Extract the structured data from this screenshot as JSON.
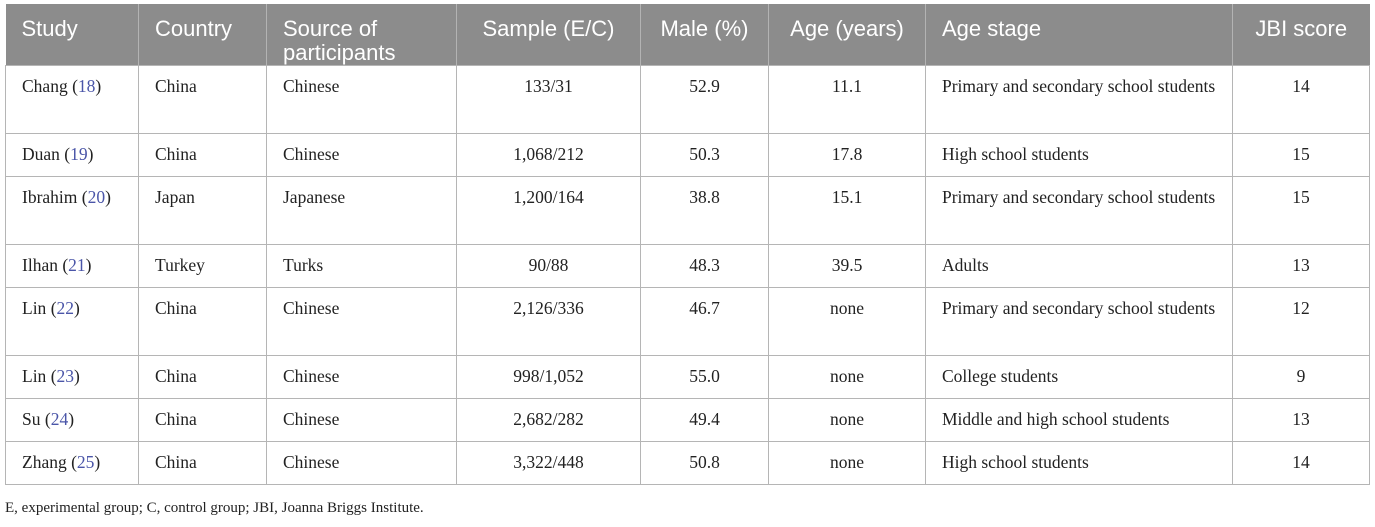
{
  "table": {
    "headers": [
      "Study",
      "Country",
      "Source of participants",
      "Sample (E/C)",
      "Male (%)",
      "Age (years)",
      "Age stage",
      "JBI score"
    ],
    "rows": [
      {
        "author": "Chang",
        "ref": "18",
        "country": "China",
        "source": "Chinese",
        "sample": "133/31",
        "male": "52.9",
        "age": "11.1",
        "stage": "Primary and secondary school students",
        "jbi": "14"
      },
      {
        "author": "Duan",
        "ref": "19",
        "country": "China",
        "source": "Chinese",
        "sample": "1,068/212",
        "male": "50.3",
        "age": "17.8",
        "stage": "High school students",
        "jbi": "15"
      },
      {
        "author": "Ibrahim",
        "ref": "20",
        "country": "Japan",
        "source": "Japanese",
        "sample": "1,200/164",
        "male": "38.8",
        "age": "15.1",
        "stage": "Primary and secondary school students",
        "jbi": "15"
      },
      {
        "author": "Ilhan",
        "ref": "21",
        "country": "Turkey",
        "source": "Turks",
        "sample": "90/88",
        "male": "48.3",
        "age": "39.5",
        "stage": "Adults",
        "jbi": "13"
      },
      {
        "author": "Lin",
        "ref": "22",
        "country": "China",
        "source": "Chinese",
        "sample": "2,126/336",
        "male": "46.7",
        "age": "none",
        "stage": "Primary and secondary school students",
        "jbi": "12"
      },
      {
        "author": "Lin",
        "ref": "23",
        "country": "China",
        "source": "Chinese",
        "sample": "998/1,052",
        "male": "55.0",
        "age": "none",
        "stage": "College students",
        "jbi": "9"
      },
      {
        "author": "Su",
        "ref": "24",
        "country": "China",
        "source": "Chinese",
        "sample": "2,682/282",
        "male": "49.4",
        "age": "none",
        "stage": "Middle and high school students",
        "jbi": "13"
      },
      {
        "author": "Zhang",
        "ref": "25",
        "country": "China",
        "source": "Chinese",
        "sample": "3,322/448",
        "male": "50.8",
        "age": "none",
        "stage": "High school students",
        "jbi": "14"
      }
    ]
  },
  "footnote": "E, experimental group; C, control group; JBI, Joanna Briggs Institute.",
  "colors": {
    "header_bg": "#8c8c8c",
    "header_text": "#ffffff",
    "ref_link": "#4a55a8",
    "border": "#b5b5b5"
  }
}
